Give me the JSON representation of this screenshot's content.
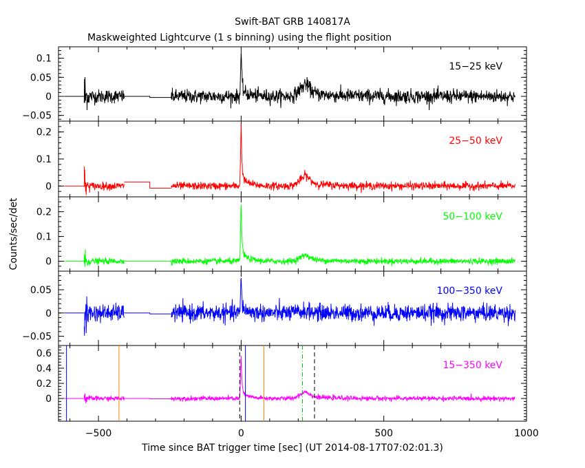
{
  "chart_data": {
    "type": "line",
    "title": "Swift-BAT GRB 140817A",
    "subtitle": "Maskweighted Lightcurve (1 s binning) using the flight position",
    "xlabel": "Time since BAT trigger time [sec] (UT 2014-08-17T07:02:01.3)",
    "ylabel": "Counts/sec/det",
    "xlim": [
      -640,
      1000
    ],
    "x_ticks": [
      -500,
      0,
      500,
      1000
    ],
    "x_tick_labels": [
      "−500",
      "0",
      "500",
      "1000"
    ],
    "segments": [
      [
        -550,
        -410
      ],
      [
        -245,
        960
      ]
    ],
    "flat_segments": [
      [
        -620,
        -550
      ],
      [
        -410,
        -320
      ],
      [
        -320,
        -245
      ]
    ],
    "panels": [
      {
        "name": "15−25 keV",
        "color": "#000000",
        "ylim": [
          -0.065,
          0.13
        ],
        "y_ticks": [
          -0.05,
          0,
          0.05,
          0.1
        ],
        "y_tick_labels": [
          "−0.05",
          "0",
          "0.05",
          "0.1"
        ],
        "noise": 0.009,
        "spike_peak": 0.11,
        "bump_peak": 0.025,
        "flat_levels": [
          0,
          0,
          -0.003
        ]
      },
      {
        "name": "25−50 keV",
        "color": "#ff0000",
        "ylim": [
          -0.04,
          0.24
        ],
        "y_ticks": [
          0,
          0.1,
          0.2
        ],
        "y_tick_labels": [
          "0",
          "0.1",
          "0.2"
        ],
        "noise": 0.007,
        "spike_peak": 0.22,
        "bump_peak": 0.03,
        "flat_levels": [
          0,
          0.015,
          -0.008
        ]
      },
      {
        "name": "50−100 keV",
        "color": "#00ff00",
        "ylim": [
          -0.04,
          0.26
        ],
        "y_ticks": [
          0,
          0.1,
          0.2
        ],
        "y_tick_labels": [
          "0",
          "0.1",
          "0.2"
        ],
        "noise": 0.006,
        "spike_peak": 0.23,
        "bump_peak": 0.02,
        "flat_levels": [
          0,
          0,
          0
        ]
      },
      {
        "name": "100−350 keV",
        "color": "#0000ff",
        "ylim": [
          -0.07,
          0.09
        ],
        "y_ticks": [
          -0.05,
          0,
          0.05
        ],
        "y_tick_labels": [
          "−0.05",
          "0",
          "0.05"
        ],
        "noise": 0.009,
        "spike_peak": 0.07,
        "bump_peak": 0.003,
        "flat_levels": [
          0,
          0,
          -0.002
        ]
      },
      {
        "name": "15−350 keV",
        "color": "#ff00ff",
        "ylim": [
          -0.3,
          0.7
        ],
        "y_ticks": [
          0,
          0.2,
          0.4,
          0.6
        ],
        "y_tick_labels": [
          "0",
          "0.2",
          "0.4",
          "0.6"
        ],
        "noise": 0.015,
        "spike_peak": 0.55,
        "bump_peak": 0.07,
        "flat_levels": [
          0,
          0,
          -0.005
        ],
        "markers": [
          {
            "x": -612,
            "color": "#0000ff",
            "style": "solid"
          },
          {
            "x": 15,
            "color": "#0000ff",
            "style": "solid"
          },
          {
            "x": -428,
            "color": "#ff8000",
            "style": "solid"
          },
          {
            "x": 80,
            "color": "#ff8000",
            "style": "solid"
          },
          {
            "x": -5,
            "color": "#000000",
            "style": "dashed"
          },
          {
            "x": 257,
            "color": "#000000",
            "style": "dashed"
          },
          {
            "x": 215,
            "color": "#00c000",
            "style": "dashdot"
          }
        ]
      }
    ]
  }
}
